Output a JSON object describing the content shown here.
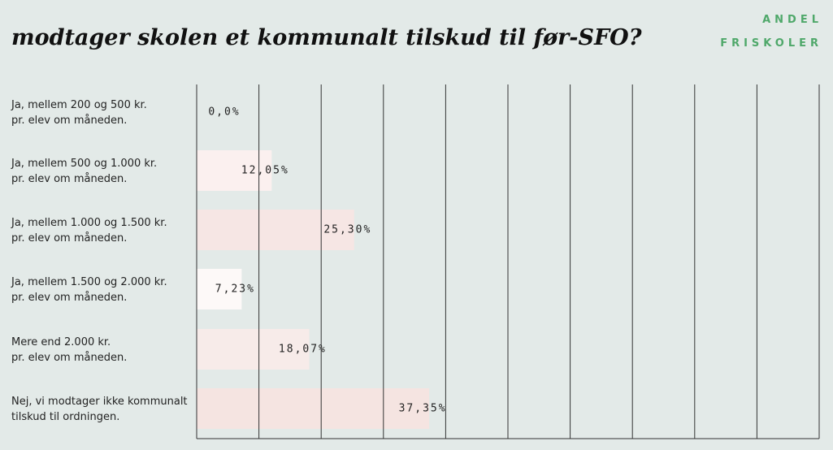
{
  "chart_data": {
    "type": "bar",
    "orientation": "horizontal",
    "title": "modtager skolen et kommunalt tilskud til før-SFO?",
    "brand": [
      "ANDEL",
      "FRISKOLER"
    ],
    "categories": [
      [
        "Ja, mellem 200 og 500 kr.",
        "pr. elev om måneden."
      ],
      [
        "Ja, mellem 500 og 1.000 kr.",
        "pr. elev om måneden."
      ],
      [
        "Ja, mellem 1.000 og 1.500 kr.",
        "pr. elev om måneden."
      ],
      [
        "Ja, mellem 1.500 og 2.000 kr.",
        "pr. elev om måneden."
      ],
      [
        "Mere end 2.000 kr.",
        "pr. elev om måneden."
      ],
      [
        "Nej, vi modtager ikke kommunalt",
        "tilskud til ordningen."
      ]
    ],
    "values": [
      0,
      12.05,
      25.3,
      7.23,
      18.07,
      37.35
    ],
    "value_labels": [
      "0,0%",
      "12,05%",
      "25,30%",
      "7,23%",
      "18,07%",
      "37,35%"
    ],
    "colors": [
      "#fbf0ef",
      "#fbf0ef",
      "#f6e6e4",
      "#fdf9f8",
      "#f7ebe9",
      "#f5e4e1"
    ],
    "xlim": [
      0,
      100
    ],
    "xticks": [
      0,
      10,
      20,
      30,
      40,
      50,
      60,
      70,
      80,
      90,
      100
    ],
    "grid": true
  }
}
